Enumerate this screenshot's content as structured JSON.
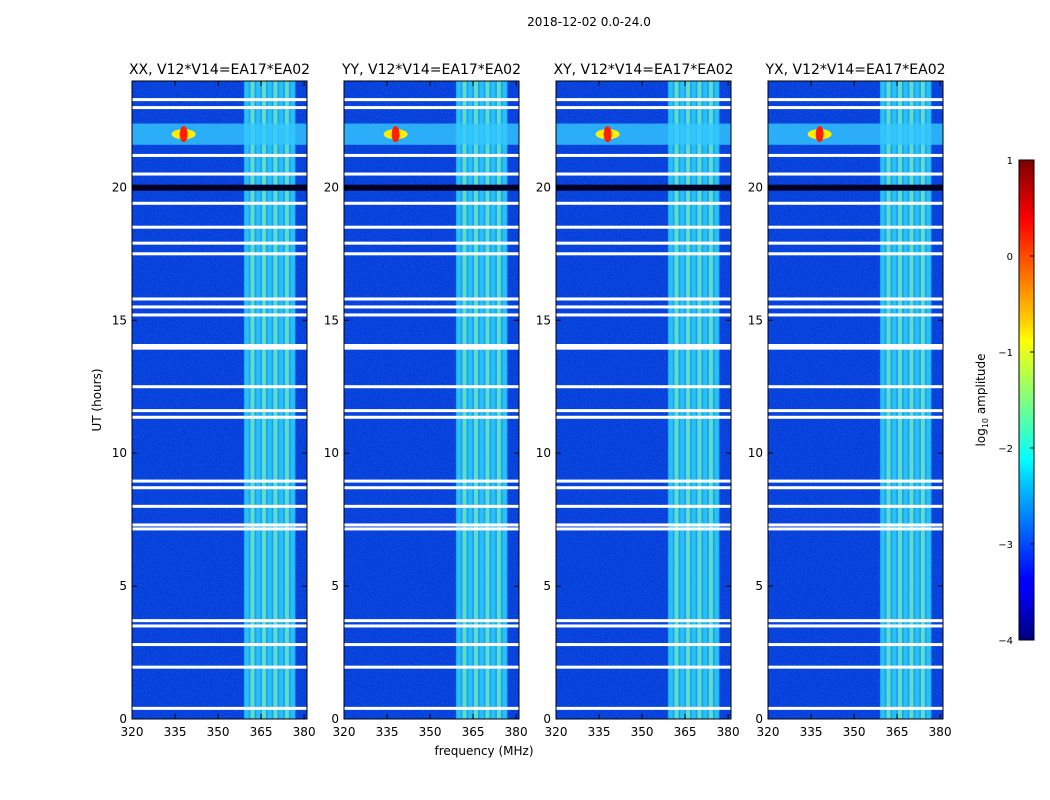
{
  "figure": {
    "suptitle": "2018-12-02 0.0-24.0",
    "xlabel": "frequency (MHz)",
    "ylabel": "UT (hours)"
  },
  "chart_data": {
    "type": "heatmap",
    "colormap": "jet",
    "xlim": [
      320,
      381
    ],
    "ylim": [
      0,
      24
    ],
    "xticks": [
      320,
      335,
      350,
      365,
      380
    ],
    "yticks": [
      0,
      5,
      10,
      15,
      20
    ],
    "panels": [
      {
        "title": "XX, V12*V14=EA17*EA02",
        "xtick_labels": [
          "320",
          "335",
          "350",
          "365",
          "380"
        ],
        "ytick_labels": [
          "0",
          "5",
          "10",
          "15",
          "20"
        ]
      },
      {
        "title": "YY, V12*V14=EA17*EA02",
        "xtick_labels": [
          "320",
          "335",
          "350",
          "365",
          "380"
        ],
        "ytick_labels": [
          "0",
          "5",
          "10",
          "15",
          "20"
        ]
      },
      {
        "title": "XY, V12*V14=EA17*EA02",
        "xtick_labels": [
          "320",
          "335",
          "350",
          "365",
          "380"
        ],
        "ytick_labels": [
          "0",
          "5",
          "10",
          "15",
          "20"
        ]
      },
      {
        "title": "YX, V12*V14=EA17*EA02",
        "xtick_labels": [
          "320",
          "335",
          "350",
          "365",
          "380"
        ],
        "ytick_labels": [
          "0",
          "5",
          "10",
          "15",
          "20"
        ]
      }
    ],
    "colorbar": {
      "label_prefix": "log",
      "label_sub": "10",
      "label_suffix": " amplitude",
      "range": [
        -4,
        1
      ],
      "ticks": [
        1,
        0,
        -1,
        -2,
        -3,
        -4
      ],
      "tick_labels": [
        "1",
        "0",
        "−1",
        "−2",
        "−3",
        "−4"
      ]
    },
    "rfi_band_mhz": [
      359,
      377
    ],
    "strong_rfi": {
      "freq_mhz": 338,
      "ut_hours": [
        21.6,
        22.4
      ]
    },
    "blank_ut_hours": [
      0.4,
      1.95,
      2.8,
      3.5,
      3.7,
      7.15,
      7.3,
      8.0,
      8.7,
      8.95,
      11.35,
      11.6,
      12.5,
      13.95,
      14.05,
      15.2,
      15.5,
      15.8,
      17.5,
      17.9,
      18.5,
      19.4,
      20.5,
      21.2,
      23.0,
      23.3
    ]
  }
}
